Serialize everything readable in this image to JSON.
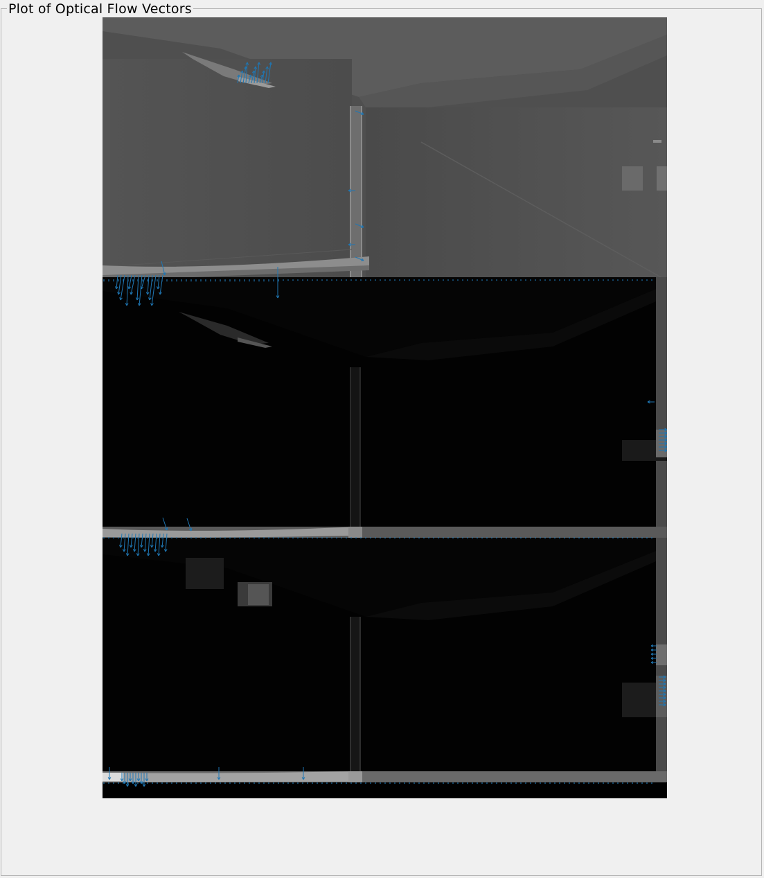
{
  "panel": {
    "title": "Plot of Optical Flow Vectors"
  },
  "plot": {
    "vector_color": "#1f77b4",
    "background": "grayscale camera frames",
    "frames": [
      {
        "name": "frame-1",
        "tone": "gray"
      },
      {
        "name": "frame-2",
        "tone": "dark"
      },
      {
        "name": "frame-3",
        "tone": "dark"
      }
    ]
  }
}
